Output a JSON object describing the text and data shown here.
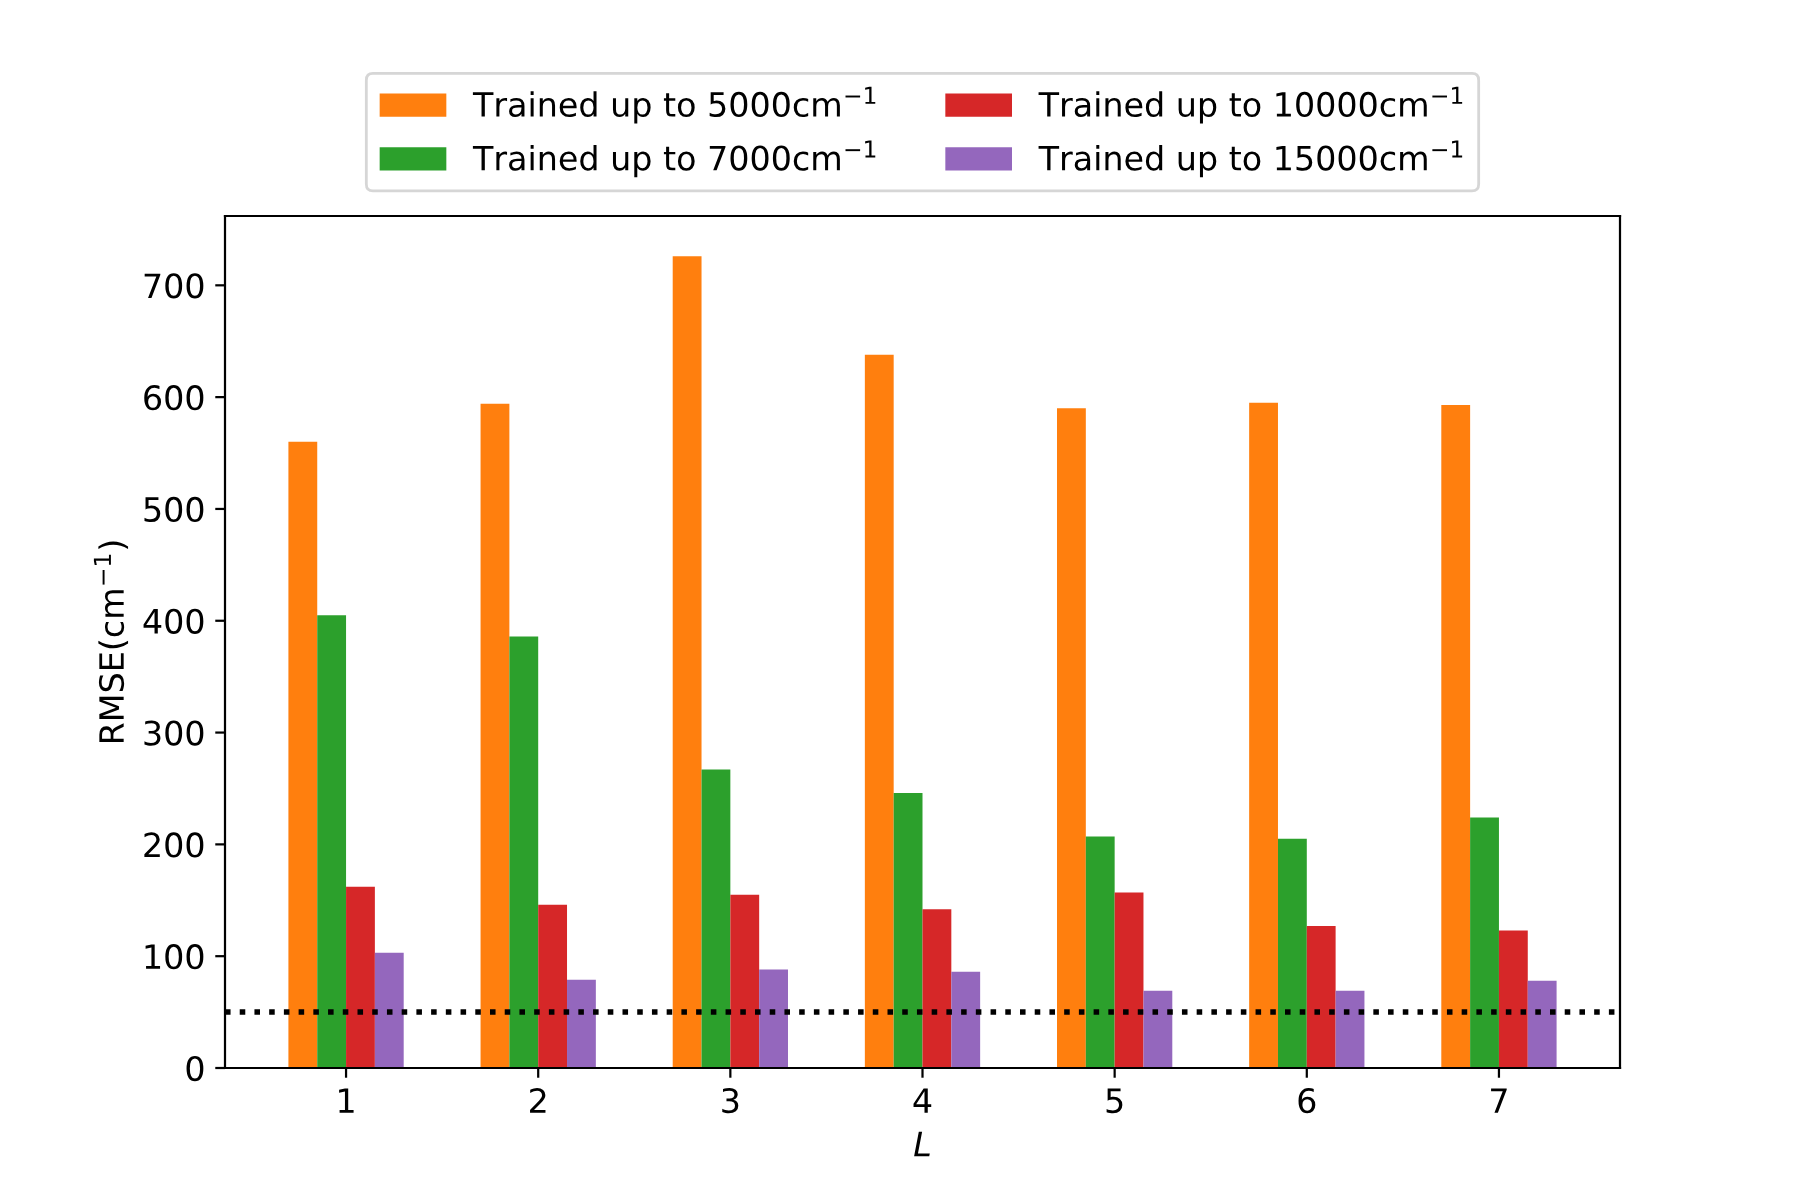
{
  "chart_data": {
    "type": "bar",
    "xlabel": "L",
    "ylabel": "RMSE(cm$^{−1}$)",
    "categories": [
      "1",
      "2",
      "3",
      "4",
      "5",
      "6",
      "7"
    ],
    "series": [
      {
        "name": "Trained up to 5000cm$^{−1}$",
        "color": "#ff7f0e",
        "values": [
          560,
          594,
          726,
          638,
          590,
          595,
          593
        ]
      },
      {
        "name": "Trained up to 7000cm$^{−1}$",
        "color": "#2ca02c",
        "values": [
          405,
          386,
          267,
          246,
          207,
          205,
          224
        ]
      },
      {
        "name": "Trained up to 10000cm$^{−1}$",
        "color": "#d62728",
        "values": [
          162,
          146,
          155,
          142,
          157,
          127,
          123
        ]
      },
      {
        "name": "Trained up to 15000cm$^{−1}$",
        "color": "#9467bd",
        "values": [
          103,
          79,
          88,
          86,
          69,
          69,
          78
        ]
      }
    ],
    "ylim": [
      0,
      762
    ],
    "yticks": [
      0,
      100,
      200,
      300,
      400,
      500,
      600,
      700
    ],
    "ref_lines": [
      {
        "axis": "y",
        "value": 50,
        "color": "#000000",
        "line_style": "dotted"
      }
    ],
    "legend": "top",
    "grid": false
  }
}
